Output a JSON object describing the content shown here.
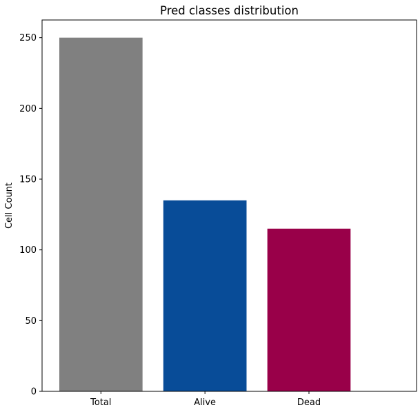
{
  "chart_data": {
    "type": "bar",
    "title": "Pred classes distribution",
    "xlabel": "",
    "ylabel": "Cell Count",
    "categories": [
      "Total",
      "Alive",
      "Dead"
    ],
    "values": [
      250,
      135,
      115
    ],
    "colors": [
      "#808080",
      "#084c98",
      "#990049"
    ],
    "ylim": [
      0,
      262.5
    ],
    "yticks": [
      0,
      50,
      100,
      150,
      200,
      250
    ],
    "grid": false,
    "legend": "none"
  }
}
